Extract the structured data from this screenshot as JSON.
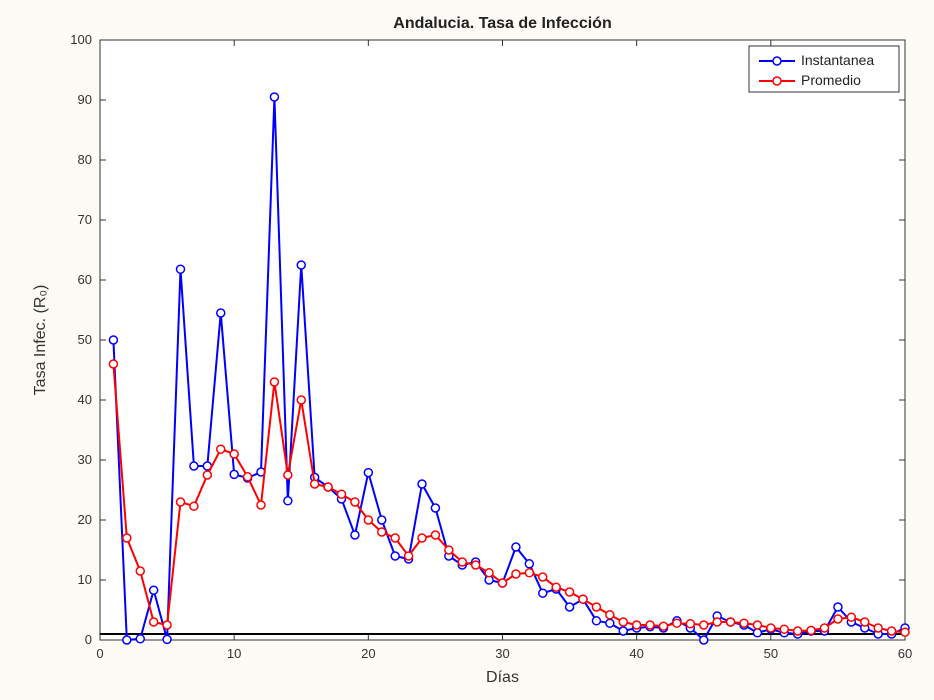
{
  "chart": {
    "type": "line",
    "title": "Andalucia. Tasa de Infección",
    "xlabel": "Días",
    "ylabel": "Tasa Infec. (R₀)",
    "title_fontsize": 16,
    "label_fontsize": 16,
    "tick_fontsize": 13,
    "background_color": "#fdfbf5",
    "plot_background": "#ffffff",
    "axis_color": "#333333",
    "grid": false,
    "box": true,
    "xlim": [
      0,
      60
    ],
    "ylim": [
      0,
      100
    ],
    "xticks": [
      0,
      10,
      20,
      30,
      40,
      50,
      60
    ],
    "yticks": [
      0,
      10,
      20,
      30,
      40,
      50,
      60,
      70,
      80,
      90,
      100
    ],
    "reference_line": {
      "y": 1.0,
      "color": "#000000",
      "width": 2
    },
    "legend": {
      "position": "top-right",
      "items": [
        {
          "label": "Instantanea",
          "color": "#0000ff",
          "marker": "circle"
        },
        {
          "label": "Promedio",
          "color": "#ff0000",
          "marker": "circle"
        }
      ],
      "box_stroke": "#333333",
      "box_fill": "#ffffff"
    },
    "series": [
      {
        "name": "Instantanea",
        "color": "#0000ff",
        "line_width": 2,
        "marker": "circle",
        "marker_size": 4,
        "marker_fill": "#ffffff",
        "x": [
          1,
          2,
          3,
          4,
          5,
          6,
          7,
          8,
          9,
          10,
          11,
          12,
          13,
          14,
          15,
          16,
          17,
          18,
          19,
          20,
          21,
          22,
          23,
          24,
          25,
          26,
          27,
          28,
          29,
          30,
          31,
          32,
          33,
          34,
          35,
          36,
          37,
          38,
          39,
          40,
          41,
          42,
          43,
          44,
          45,
          46,
          47,
          48,
          49,
          50,
          51,
          52,
          53,
          54,
          55,
          56,
          57,
          58,
          59,
          60
        ],
        "y": [
          50,
          0,
          0.2,
          8.3,
          0.1,
          61.8,
          29,
          29,
          54.5,
          27.6,
          27,
          28,
          90.5,
          23.2,
          62.5,
          27.1,
          25.5,
          23.5,
          17.5,
          27.9,
          20,
          14,
          13.5,
          26,
          22,
          14,
          12.5,
          13,
          10,
          9.5,
          15.5,
          12.7,
          7.8,
          8.5,
          5.5,
          6.8,
          3.2,
          2.8,
          1.5,
          2,
          2.2,
          2,
          3.2,
          2,
          0,
          4,
          3,
          2.5,
          1.2,
          1.8,
          1.2,
          1,
          1.5,
          1.5,
          5.5,
          3,
          2,
          1,
          1,
          2
        ]
      },
      {
        "name": "Promedio",
        "color": "#ff0000",
        "line_width": 2,
        "marker": "circle",
        "marker_size": 4,
        "marker_fill": "#ffffff",
        "x": [
          1,
          2,
          3,
          4,
          5,
          6,
          7,
          8,
          9,
          10,
          11,
          12,
          13,
          14,
          15,
          16,
          17,
          18,
          19,
          20,
          21,
          22,
          23,
          24,
          25,
          26,
          27,
          28,
          29,
          30,
          31,
          32,
          33,
          34,
          35,
          36,
          37,
          38,
          39,
          40,
          41,
          42,
          43,
          44,
          45,
          46,
          47,
          48,
          49,
          50,
          51,
          52,
          53,
          54,
          55,
          56,
          57,
          58,
          59,
          60
        ],
        "y": [
          46,
          17,
          11.5,
          3,
          2.5,
          23,
          22.3,
          27.5,
          31.8,
          31,
          27.2,
          22.5,
          43,
          27.5,
          40,
          26,
          25.5,
          24.3,
          23,
          20,
          18,
          17,
          14,
          17,
          17.5,
          15,
          13,
          12.5,
          11.2,
          9.5,
          11,
          11.2,
          10.5,
          8.8,
          8,
          6.8,
          5.5,
          4.2,
          3,
          2.5,
          2.5,
          2.3,
          2.8,
          2.7,
          2.5,
          3,
          3,
          2.8,
          2.5,
          2,
          1.8,
          1.5,
          1.6,
          2,
          3.5,
          3.8,
          3,
          2,
          1.5,
          1.3
        ]
      }
    ]
  }
}
